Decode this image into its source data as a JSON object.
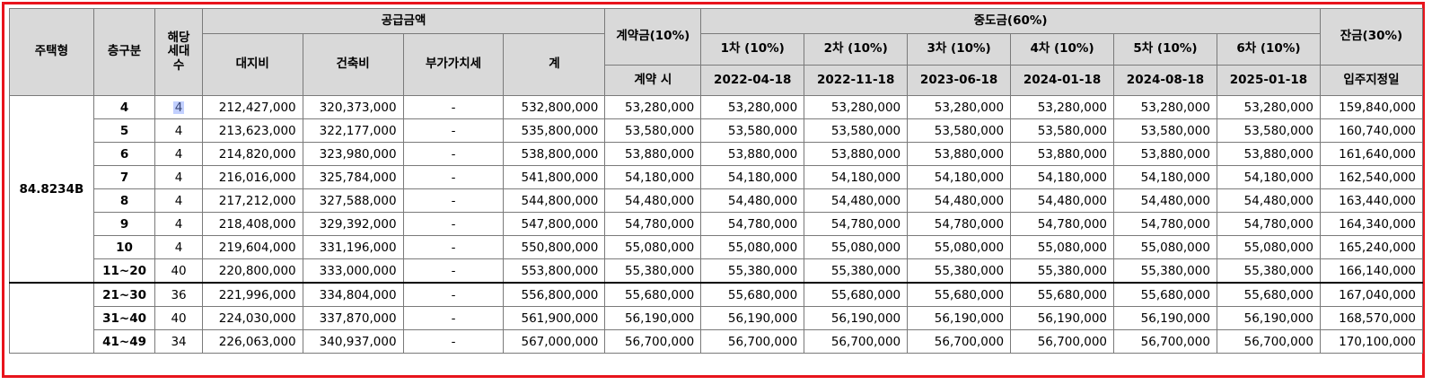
{
  "headers": {
    "housing_type": "주택형",
    "floor": "층구분",
    "units_line1": "해당",
    "units_line2": "세대",
    "units_line3": "수",
    "supply_amount": "공급금액",
    "land": "대지비",
    "building": "건축비",
    "vat": "부가가치세",
    "total": "계",
    "deposit": "계약금(10%)",
    "deposit_when": "계약 시",
    "interim": "중도금(60%)",
    "interim_installments": [
      {
        "label": "1차 (10%)",
        "date": "2022-04-18"
      },
      {
        "label": "2차 (10%)",
        "date": "2022-11-18"
      },
      {
        "label": "3차 (10%)",
        "date": "2023-06-18"
      },
      {
        "label": "4차 (10%)",
        "date": "2024-01-18"
      },
      {
        "label": "5차 (10%)",
        "date": "2024-08-18"
      },
      {
        "label": "6차 (10%)",
        "date": "2025-01-18"
      }
    ],
    "balance": "잔금(30%)",
    "balance_when": "입주지정일"
  },
  "housing_type_value": "84.8234B",
  "rows": [
    {
      "floor": "4",
      "units": "4",
      "land": "212,427,000",
      "building": "320,373,000",
      "vat": "-",
      "total": "532,800,000",
      "deposit": "53,280,000",
      "i1": "53,280,000",
      "i2": "53,280,000",
      "i3": "53,280,000",
      "i4": "53,280,000",
      "i5": "53,280,000",
      "i6": "53,280,000",
      "balance": "159,840,000"
    },
    {
      "floor": "5",
      "units": "4",
      "land": "213,623,000",
      "building": "322,177,000",
      "vat": "-",
      "total": "535,800,000",
      "deposit": "53,580,000",
      "i1": "53,580,000",
      "i2": "53,580,000",
      "i3": "53,580,000",
      "i4": "53,580,000",
      "i5": "53,580,000",
      "i6": "53,580,000",
      "balance": "160,740,000"
    },
    {
      "floor": "6",
      "units": "4",
      "land": "214,820,000",
      "building": "323,980,000",
      "vat": "-",
      "total": "538,800,000",
      "deposit": "53,880,000",
      "i1": "53,880,000",
      "i2": "53,880,000",
      "i3": "53,880,000",
      "i4": "53,880,000",
      "i5": "53,880,000",
      "i6": "53,880,000",
      "balance": "161,640,000"
    },
    {
      "floor": "7",
      "units": "4",
      "land": "216,016,000",
      "building": "325,784,000",
      "vat": "-",
      "total": "541,800,000",
      "deposit": "54,180,000",
      "i1": "54,180,000",
      "i2": "54,180,000",
      "i3": "54,180,000",
      "i4": "54,180,000",
      "i5": "54,180,000",
      "i6": "54,180,000",
      "balance": "162,540,000"
    },
    {
      "floor": "8",
      "units": "4",
      "land": "217,212,000",
      "building": "327,588,000",
      "vat": "-",
      "total": "544,800,000",
      "deposit": "54,480,000",
      "i1": "54,480,000",
      "i2": "54,480,000",
      "i3": "54,480,000",
      "i4": "54,480,000",
      "i5": "54,480,000",
      "i6": "54,480,000",
      "balance": "163,440,000"
    },
    {
      "floor": "9",
      "units": "4",
      "land": "218,408,000",
      "building": "329,392,000",
      "vat": "-",
      "total": "547,800,000",
      "deposit": "54,780,000",
      "i1": "54,780,000",
      "i2": "54,780,000",
      "i3": "54,780,000",
      "i4": "54,780,000",
      "i5": "54,780,000",
      "i6": "54,780,000",
      "balance": "164,340,000"
    },
    {
      "floor": "10",
      "units": "4",
      "land": "219,604,000",
      "building": "331,196,000",
      "vat": "-",
      "total": "550,800,000",
      "deposit": "55,080,000",
      "i1": "55,080,000",
      "i2": "55,080,000",
      "i3": "55,080,000",
      "i4": "55,080,000",
      "i5": "55,080,000",
      "i6": "55,080,000",
      "balance": "165,240,000"
    },
    {
      "floor": "11~20",
      "units": "40",
      "land": "220,800,000",
      "building": "333,000,000",
      "vat": "-",
      "total": "553,800,000",
      "deposit": "55,380,000",
      "i1": "55,380,000",
      "i2": "55,380,000",
      "i3": "55,380,000",
      "i4": "55,380,000",
      "i5": "55,380,000",
      "i6": "55,380,000",
      "balance": "166,140,000"
    },
    {
      "floor": "21~30",
      "units": "36",
      "land": "221,996,000",
      "building": "334,804,000",
      "vat": "-",
      "total": "556,800,000",
      "deposit": "55,680,000",
      "i1": "55,680,000",
      "i2": "55,680,000",
      "i3": "55,680,000",
      "i4": "55,680,000",
      "i5": "55,680,000",
      "i6": "55,680,000",
      "balance": "167,040,000"
    },
    {
      "floor": "31~40",
      "units": "40",
      "land": "224,030,000",
      "building": "337,870,000",
      "vat": "-",
      "total": "561,900,000",
      "deposit": "56,190,000",
      "i1": "56,190,000",
      "i2": "56,190,000",
      "i3": "56,190,000",
      "i4": "56,190,000",
      "i5": "56,190,000",
      "i6": "56,190,000",
      "balance": "168,570,000"
    },
    {
      "floor": "41~49",
      "units": "34",
      "land": "226,063,000",
      "building": "340,937,000",
      "vat": "-",
      "total": "567,000,000",
      "deposit": "56,700,000",
      "i1": "56,700,000",
      "i2": "56,700,000",
      "i3": "56,700,000",
      "i4": "56,700,000",
      "i5": "56,700,000",
      "i6": "56,700,000",
      "balance": "170,100,000"
    }
  ],
  "colors": {
    "frame": "#e8141c",
    "header_bg": "#d9d9d9",
    "selection": "#7896ff"
  }
}
